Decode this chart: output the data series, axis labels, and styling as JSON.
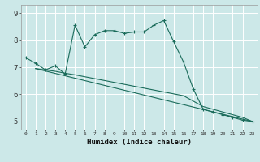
{
  "xlabel": "Humidex (Indice chaleur)",
  "background_color": "#cce8e8",
  "plot_bg_color": "#cce8e8",
  "axis_bg_color": "#c8d8d8",
  "grid_color": "#ffffff",
  "line_color": "#1a6b5a",
  "xlim": [
    -0.5,
    23.5
  ],
  "ylim": [
    4.7,
    9.3
  ],
  "xticks": [
    0,
    1,
    2,
    3,
    4,
    5,
    6,
    7,
    8,
    9,
    10,
    11,
    12,
    13,
    14,
    15,
    16,
    17,
    18,
    19,
    20,
    21,
    22,
    23
  ],
  "yticks": [
    5,
    6,
    7,
    8,
    9
  ],
  "series1_x": [
    0,
    1,
    2,
    3,
    4,
    5,
    6,
    7,
    8,
    9,
    10,
    11,
    12,
    13,
    14,
    15,
    16,
    17,
    18,
    19,
    20,
    21,
    22,
    23
  ],
  "series1_y": [
    7.35,
    7.15,
    6.9,
    7.05,
    6.75,
    8.55,
    7.75,
    8.2,
    8.35,
    8.35,
    8.25,
    8.3,
    8.3,
    8.55,
    8.72,
    7.95,
    7.2,
    6.2,
    5.45,
    5.35,
    5.25,
    5.15,
    5.05,
    5.0
  ],
  "series2_x": [
    1,
    2,
    3,
    4,
    5,
    6,
    7,
    8,
    9,
    10,
    11,
    12,
    13,
    14,
    15,
    16,
    17,
    18,
    19,
    20,
    21,
    22,
    23
  ],
  "series2_y": [
    6.95,
    6.9,
    6.85,
    6.78,
    6.72,
    6.65,
    6.58,
    6.51,
    6.44,
    6.37,
    6.3,
    6.23,
    6.16,
    6.09,
    6.02,
    5.95,
    5.75,
    5.55,
    5.45,
    5.35,
    5.25,
    5.15,
    5.0
  ],
  "series3_x": [
    1,
    23
  ],
  "series3_y": [
    6.95,
    5.0
  ]
}
